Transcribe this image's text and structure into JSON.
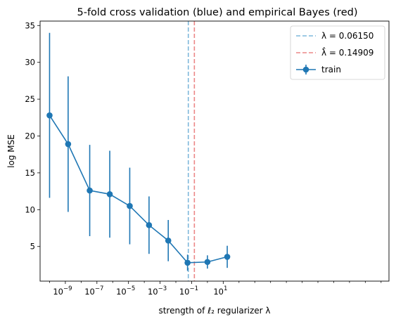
{
  "chart_data": {
    "type": "line",
    "title": "5-fold cross validation (blue) and empirical Bayes (red)",
    "xlabel": "strength of ℓ₂ regularizer λ",
    "ylabel": "log MSE",
    "xscale": "log",
    "xlim_log10": [
      -10.6,
      11.5
    ],
    "xlim": [
      2.5e-11,
      320000000000.0
    ],
    "ylim": [
      0.3,
      35.6
    ],
    "xticks": [
      {
        "log10": -9,
        "base": "10",
        "exp": "−9"
      },
      {
        "log10": -7,
        "base": "10",
        "exp": "−7"
      },
      {
        "log10": -5,
        "base": "10",
        "exp": "−5"
      },
      {
        "log10": -3,
        "base": "10",
        "exp": "−3"
      },
      {
        "log10": -1,
        "base": "10",
        "exp": "−1"
      },
      {
        "log10": 1,
        "base": "10",
        "exp": "1"
      }
    ],
    "yticks": [
      5,
      10,
      15,
      20,
      25,
      30,
      35
    ],
    "series": [
      {
        "name": "train",
        "color": "#1f77b4",
        "x": [
          1e-10,
          1.5e-09,
          3.5e-08,
          6.5e-07,
          1.2e-05,
          0.0002,
          0.0033,
          0.055,
          1.0,
          18.0
        ],
        "y": [
          22.8,
          18.9,
          12.6,
          12.1,
          10.5,
          7.9,
          5.8,
          2.8,
          2.9,
          3.6
        ],
        "yerr": [
          11.2,
          9.2,
          6.2,
          5.9,
          5.2,
          3.9,
          2.8,
          1.1,
          0.9,
          1.5
        ]
      }
    ],
    "vlines": [
      {
        "x": 0.0615,
        "color": "#7fb8db",
        "label_text": "λ = 0.06150"
      },
      {
        "x": 0.14909,
        "color": "#ec8787",
        "label_text": "λ̂ = 0.14909"
      }
    ],
    "legend": {
      "placement": "top-right",
      "entries": [
        {
          "text": "λ = 0.06150",
          "style": "dashed",
          "color": "#7fb8db"
        },
        {
          "text": "λ̂ = 0.14909",
          "style": "dashed",
          "color": "#ec8787"
        },
        {
          "text": "train",
          "style": "errorbar-marker",
          "color": "#1f77b4"
        }
      ]
    },
    "grid": false
  }
}
